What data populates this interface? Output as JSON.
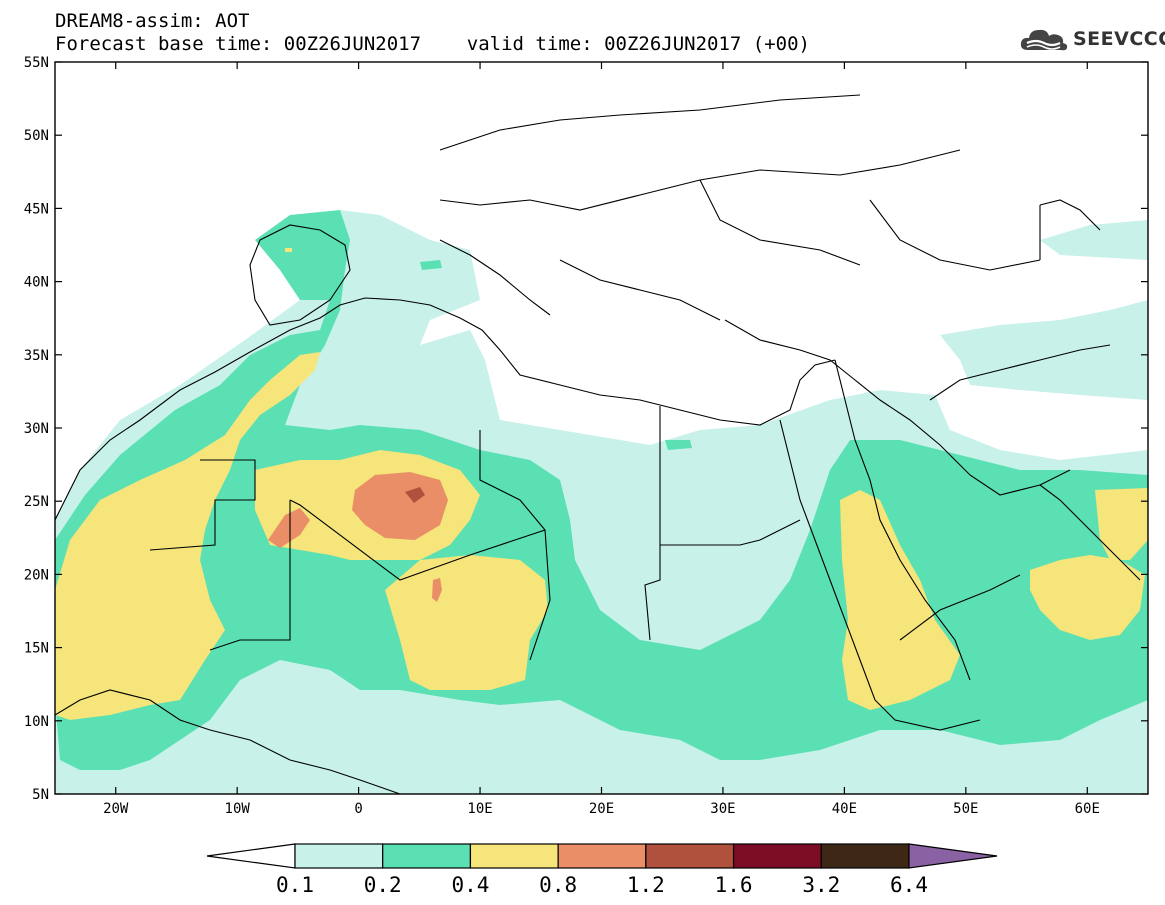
{
  "header": {
    "title_line1": "DREAM8-assim: AOT",
    "title_line2": "Forecast base time: 00Z26JUN2017    valid time: 00Z26JUN2017 (+00)",
    "logo_text": "SEEVCCC"
  },
  "map": {
    "lon_range": [
      -25,
      65
    ],
    "lat_range": [
      5,
      55
    ],
    "lat_ticks": [
      {
        "value": 55,
        "label": "55N"
      },
      {
        "value": 50,
        "label": "50N"
      },
      {
        "value": 45,
        "label": "45N"
      },
      {
        "value": 40,
        "label": "40N"
      },
      {
        "value": 35,
        "label": "35N"
      },
      {
        "value": 30,
        "label": "30N"
      },
      {
        "value": 25,
        "label": "25N"
      },
      {
        "value": 20,
        "label": "20N"
      },
      {
        "value": 15,
        "label": "15N"
      },
      {
        "value": 10,
        "label": "10N"
      },
      {
        "value": 5,
        "label": "5N"
      }
    ],
    "lon_ticks": [
      {
        "value": -20,
        "label": "20W"
      },
      {
        "value": -10,
        "label": "10W"
      },
      {
        "value": 0,
        "label": "0"
      },
      {
        "value": 10,
        "label": "10E"
      },
      {
        "value": 20,
        "label": "20E"
      },
      {
        "value": 30,
        "label": "30E"
      },
      {
        "value": 40,
        "label": "40E"
      },
      {
        "value": 50,
        "label": "50E"
      },
      {
        "value": 60,
        "label": "60E"
      }
    ]
  },
  "legend": {
    "colors": [
      "#c8f1ea",
      "#5be0b4",
      "#f5e57a",
      "#ea8e68",
      "#b0513d",
      "#7c0d24",
      "#3e2815",
      "#8a62a4"
    ],
    "under_color": "#ffffff",
    "labels": [
      "0.1",
      "0.2",
      "0.4",
      "0.8",
      "1.2",
      "1.6",
      "3.2",
      "6.4"
    ]
  },
  "colors": {
    "aot_0_1": "#c8f1ea",
    "aot_0_2": "#5be0b4",
    "aot_0_4": "#f5e57a",
    "aot_0_8": "#ea8e68",
    "aot_1_2": "#b0513d",
    "border": "#000000"
  }
}
